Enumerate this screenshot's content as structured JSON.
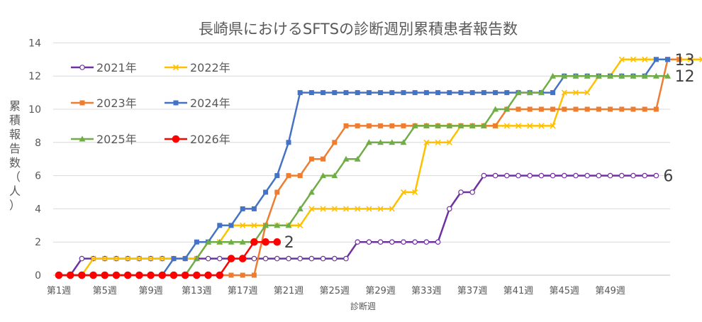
{
  "chart_data": {
    "type": "line",
    "title": "長崎県におけるSFTSの診断週別累積患者報告数",
    "xlabel": "診断週",
    "ylabel": "累積報告数（人）",
    "ylim": [
      0,
      14
    ],
    "yticks": [
      0,
      2,
      4,
      6,
      8,
      10,
      12,
      14
    ],
    "xtick_labels": [
      "第1週",
      "第5週",
      "第9週",
      "第13週",
      "第17週",
      "第21週",
      "第25週",
      "第29週",
      "第33週",
      "第37週",
      "第41週",
      "第45週",
      "第49週"
    ],
    "grid": "horizontal",
    "legend_position": "top-left",
    "series": [
      {
        "name": "2021年",
        "color": "#7030a0",
        "marker": "circle-open",
        "values": [
          0,
          0,
          1,
          1,
          1,
          1,
          1,
          1,
          1,
          1,
          1,
          1,
          1,
          1,
          1,
          1,
          1,
          1,
          1,
          1,
          1,
          1,
          1,
          1,
          1,
          1,
          2,
          2,
          2,
          2,
          2,
          2,
          2,
          2,
          4,
          5,
          5,
          6,
          6,
          6,
          6,
          6,
          6,
          6,
          6,
          6,
          6,
          6,
          6,
          6,
          6,
          6,
          6
        ]
      },
      {
        "name": "2022年",
        "color": "#ffc000",
        "marker": "x",
        "values": [
          0,
          0,
          0,
          1,
          1,
          1,
          1,
          1,
          1,
          1,
          1,
          1,
          1,
          2,
          2,
          3,
          3,
          3,
          3,
          3,
          3,
          3,
          4,
          4,
          4,
          4,
          4,
          4,
          4,
          4,
          5,
          5,
          8,
          8,
          8,
          9,
          9,
          9,
          9,
          9,
          9,
          9,
          9,
          9,
          11,
          11,
          11,
          12,
          12,
          13,
          13,
          13,
          13,
          13,
          13,
          13,
          13
        ]
      },
      {
        "name": "2023年",
        "color": "#ed7d31",
        "marker": "square",
        "values": [
          0,
          0,
          0,
          0,
          0,
          0,
          0,
          0,
          0,
          0,
          0,
          0,
          0,
          0,
          0,
          0,
          0,
          0,
          3,
          5,
          6,
          6,
          7,
          7,
          8,
          9,
          9,
          9,
          9,
          9,
          9,
          9,
          9,
          9,
          9,
          9,
          9,
          9,
          9,
          10,
          10,
          10,
          10,
          10,
          10,
          10,
          10,
          10,
          10,
          10,
          10,
          10,
          10,
          13,
          13
        ]
      },
      {
        "name": "2024年",
        "color": "#4472c4",
        "marker": "square",
        "values": [
          0,
          0,
          0,
          0,
          0,
          0,
          0,
          0,
          0,
          0,
          1,
          1,
          2,
          2,
          3,
          3,
          4,
          4,
          5,
          6,
          8,
          11,
          11,
          11,
          11,
          11,
          11,
          11,
          11,
          11,
          11,
          11,
          11,
          11,
          11,
          11,
          11,
          11,
          11,
          11,
          11,
          11,
          11,
          11,
          12,
          12,
          12,
          12,
          12,
          12,
          12,
          12,
          13,
          13
        ]
      },
      {
        "name": "2025年",
        "color": "#70ad47",
        "marker": "triangle",
        "values": [
          0,
          0,
          0,
          0,
          0,
          0,
          0,
          0,
          0,
          0,
          0,
          0,
          1,
          2,
          2,
          2,
          2,
          2,
          3,
          3,
          3,
          4,
          5,
          6,
          6,
          7,
          7,
          8,
          8,
          8,
          8,
          9,
          9,
          9,
          9,
          9,
          9,
          9,
          10,
          10,
          11,
          11,
          11,
          12,
          12,
          12,
          12,
          12,
          12,
          12,
          12,
          12,
          12,
          12
        ]
      },
      {
        "name": "2026年",
        "color": "#ff0000",
        "marker": "circle",
        "values": [
          0,
          0,
          0,
          0,
          0,
          0,
          0,
          0,
          0,
          0,
          0,
          0,
          0,
          0,
          0,
          1,
          1,
          2,
          2,
          2
        ]
      }
    ],
    "end_labels": [
      {
        "series": "2024年",
        "text": "13"
      },
      {
        "series": "2025年",
        "text": "12"
      },
      {
        "series": "2021年",
        "text": "6"
      },
      {
        "series": "2026年",
        "text": "2"
      }
    ]
  }
}
